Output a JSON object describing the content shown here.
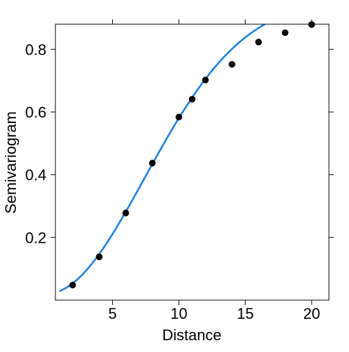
{
  "chart_data": {
    "type": "scatter",
    "title": "",
    "xlabel": "Distance",
    "ylabel": "Semivariogram",
    "xlim": [
      0.7,
      21.3
    ],
    "ylim": [
      0.0,
      0.88
    ],
    "xticks": [
      5,
      10,
      15,
      20
    ],
    "xtick_labels": [
      "5",
      "10",
      "15",
      "20"
    ],
    "yticks": [
      0.2,
      0.4,
      0.6,
      0.8
    ],
    "ytick_labels": [
      "0.2",
      "0.4",
      "0.6",
      "0.8"
    ],
    "grid": false,
    "legend": "none",
    "points": {
      "x": [
        2,
        4,
        6,
        8,
        10,
        11,
        12,
        14,
        16,
        18,
        20
      ],
      "y": [
        0.048,
        0.138,
        0.278,
        0.437,
        0.584,
        0.641,
        0.702,
        0.752,
        0.823,
        0.853,
        0.879
      ],
      "color": "#000000"
    },
    "fitted_curve": {
      "model": "gaussian",
      "nugget": 0.02,
      "psill": 0.94,
      "range": 10.5,
      "x_from": 1.0,
      "x_to": 21.3,
      "color": "#1f7fe0"
    }
  }
}
